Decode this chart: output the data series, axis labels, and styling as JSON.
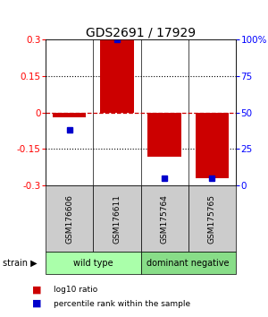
{
  "title": "GDS2691 / 17929",
  "samples": [
    "GSM176606",
    "GSM176611",
    "GSM175764",
    "GSM175765"
  ],
  "log10_ratio": [
    -0.02,
    0.3,
    -0.18,
    -0.27
  ],
  "percentile_rank": [
    38,
    100,
    5,
    5
  ],
  "ylim_left": [
    -0.3,
    0.3
  ],
  "ylim_right": [
    0,
    100
  ],
  "yticks_left": [
    0.3,
    0.15,
    0,
    -0.15,
    -0.3
  ],
  "yticks_right": [
    100,
    75,
    50,
    25,
    0
  ],
  "ytick_labels_right": [
    "100%",
    "75",
    "50",
    "25",
    "0"
  ],
  "bar_color": "#cc0000",
  "dot_color": "#0000cc",
  "hline_color": "#cc0000",
  "hline_style": "--",
  "grid_color": "#000000",
  "strain_groups": [
    {
      "label": "wild type",
      "cols": [
        0,
        1
      ],
      "color": "#aaffaa"
    },
    {
      "label": "dominant negative",
      "cols": [
        2,
        3
      ],
      "color": "#88dd88"
    }
  ],
  "box_color": "#cccccc",
  "legend_bar_color": "#cc0000",
  "legend_dot_color": "#0000cc",
  "title_fontsize": 10,
  "tick_fontsize": 7.5,
  "label_fontsize": 7
}
